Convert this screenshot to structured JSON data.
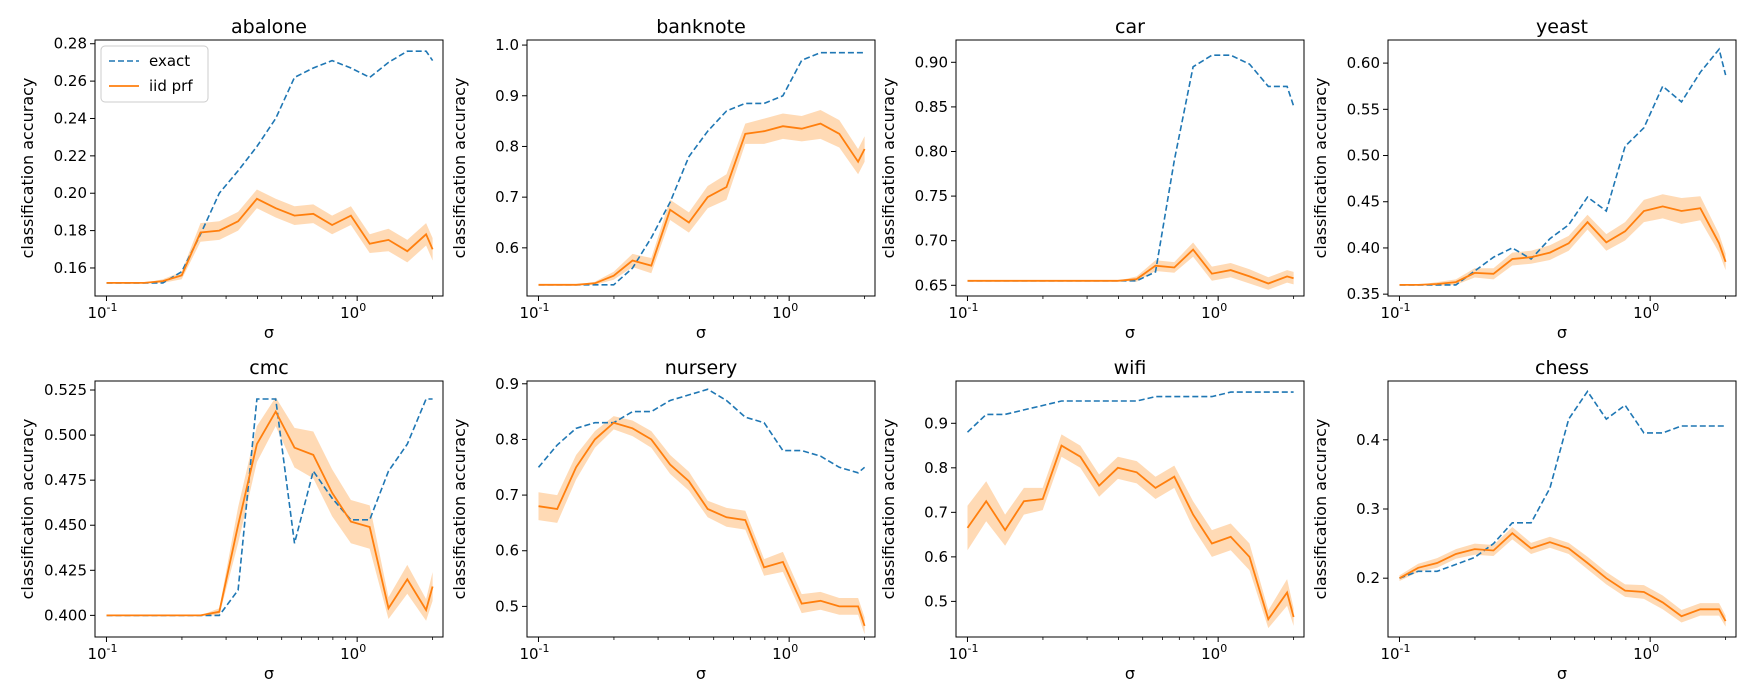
{
  "colors": {
    "exact": "#1f77b4",
    "iid_prf": "#ff7f0e",
    "band": "#ffbb78"
  },
  "legend": {
    "items": [
      "exact",
      "iid prf"
    ],
    "placement": "upper-left of first panel"
  },
  "chart_data": [
    {
      "type": "line",
      "title": "abalone",
      "xlabel": "σ",
      "ylabel": "classification accuracy",
      "xscale": "log",
      "xtick_labels": [
        "10^-1",
        "10^0"
      ],
      "ylim": [
        0.145,
        0.282
      ],
      "yticks": [
        0.16,
        0.18,
        0.2,
        0.22,
        0.24,
        0.26,
        0.28
      ],
      "ytick_labels": [
        "0.16",
        "0.18",
        "0.20",
        "0.22",
        "0.24",
        "0.26",
        "0.28"
      ],
      "x": [
        0.1,
        0.1188,
        0.1413,
        0.1679,
        0.1995,
        0.2371,
        0.2818,
        0.3349,
        0.3981,
        0.4732,
        0.5623,
        0.6683,
        0.7943,
        0.9441,
        1.122,
        1.3335,
        1.5849,
        1.8836,
        2.0
      ],
      "series": [
        {
          "name": "exact",
          "values": [
            0.152,
            0.152,
            0.152,
            0.152,
            0.158,
            0.178,
            0.2,
            0.212,
            0.225,
            0.24,
            0.262,
            0.267,
            0.271,
            0.267,
            0.262,
            0.27,
            0.276,
            0.276,
            0.271
          ]
        },
        {
          "name": "iid prf",
          "values": [
            0.152,
            0.152,
            0.152,
            0.153,
            0.156,
            0.179,
            0.18,
            0.185,
            0.197,
            0.192,
            0.188,
            0.189,
            0.183,
            0.188,
            0.173,
            0.175,
            0.169,
            0.178,
            0.17
          ],
          "lower": [
            0.152,
            0.152,
            0.152,
            0.152,
            0.154,
            0.174,
            0.175,
            0.18,
            0.192,
            0.187,
            0.183,
            0.184,
            0.178,
            0.183,
            0.168,
            0.169,
            0.163,
            0.172,
            0.164
          ],
          "upper": [
            0.152,
            0.152,
            0.152,
            0.154,
            0.158,
            0.184,
            0.185,
            0.19,
            0.202,
            0.197,
            0.193,
            0.194,
            0.188,
            0.193,
            0.178,
            0.181,
            0.175,
            0.184,
            0.176
          ]
        }
      ]
    },
    {
      "type": "line",
      "title": "banknote",
      "xlabel": "σ",
      "ylabel": "classification accuracy",
      "xscale": "log",
      "xtick_labels": [
        "10^-1",
        "10^0"
      ],
      "ylim": [
        0.505,
        1.01
      ],
      "yticks": [
        0.6,
        0.7,
        0.8,
        0.9,
        1.0
      ],
      "ytick_labels": [
        "0.6",
        "0.7",
        "0.8",
        "0.9",
        "1.0"
      ],
      "x": [
        0.1,
        0.1188,
        0.1413,
        0.1679,
        0.1995,
        0.2371,
        0.2818,
        0.3349,
        0.3981,
        0.4732,
        0.5623,
        0.6683,
        0.7943,
        0.9441,
        1.122,
        1.3335,
        1.5849,
        1.8836,
        2.0
      ],
      "series": [
        {
          "name": "exact",
          "values": [
            0.527,
            0.527,
            0.527,
            0.527,
            0.527,
            0.56,
            0.62,
            0.69,
            0.78,
            0.83,
            0.87,
            0.885,
            0.885,
            0.9,
            0.97,
            0.985,
            0.985,
            0.985,
            0.985
          ]
        },
        {
          "name": "iid prf",
          "values": [
            0.527,
            0.527,
            0.527,
            0.53,
            0.545,
            0.575,
            0.565,
            0.675,
            0.65,
            0.7,
            0.72,
            0.825,
            0.83,
            0.84,
            0.835,
            0.845,
            0.825,
            0.77,
            0.795
          ],
          "lower": [
            0.527,
            0.527,
            0.527,
            0.527,
            0.537,
            0.562,
            0.55,
            0.655,
            0.63,
            0.678,
            0.695,
            0.805,
            0.805,
            0.815,
            0.81,
            0.815,
            0.798,
            0.745,
            0.77
          ],
          "upper": [
            0.527,
            0.527,
            0.527,
            0.533,
            0.553,
            0.588,
            0.58,
            0.695,
            0.67,
            0.722,
            0.745,
            0.845,
            0.855,
            0.865,
            0.86,
            0.872,
            0.852,
            0.795,
            0.82
          ]
        }
      ]
    },
    {
      "type": "line",
      "title": "car",
      "xlabel": "σ",
      "ylabel": "classification accuracy",
      "xscale": "log",
      "xtick_labels": [
        "10^-1",
        "10^0"
      ],
      "ylim": [
        0.638,
        0.925
      ],
      "yticks": [
        0.65,
        0.7,
        0.75,
        0.8,
        0.85,
        0.9
      ],
      "ytick_labels": [
        "0.65",
        "0.70",
        "0.75",
        "0.80",
        "0.85",
        "0.90"
      ],
      "x": [
        0.1,
        0.1188,
        0.1413,
        0.1679,
        0.1995,
        0.2371,
        0.2818,
        0.3349,
        0.3981,
        0.4732,
        0.5623,
        0.6683,
        0.7943,
        0.9441,
        1.122,
        1.3335,
        1.5849,
        1.8836,
        2.0
      ],
      "series": [
        {
          "name": "exact",
          "values": [
            0.655,
            0.655,
            0.655,
            0.655,
            0.655,
            0.655,
            0.655,
            0.655,
            0.655,
            0.655,
            0.665,
            0.79,
            0.895,
            0.908,
            0.908,
            0.898,
            0.873,
            0.873,
            0.851
          ]
        },
        {
          "name": "iid prf",
          "values": [
            0.655,
            0.655,
            0.655,
            0.655,
            0.655,
            0.655,
            0.655,
            0.655,
            0.655,
            0.657,
            0.672,
            0.67,
            0.69,
            0.663,
            0.667,
            0.66,
            0.652,
            0.66,
            0.658
          ],
          "lower": [
            0.655,
            0.655,
            0.655,
            0.655,
            0.655,
            0.655,
            0.655,
            0.655,
            0.655,
            0.654,
            0.666,
            0.664,
            0.682,
            0.655,
            0.659,
            0.652,
            0.645,
            0.653,
            0.651
          ],
          "upper": [
            0.655,
            0.655,
            0.655,
            0.655,
            0.655,
            0.655,
            0.655,
            0.655,
            0.655,
            0.66,
            0.678,
            0.676,
            0.698,
            0.671,
            0.675,
            0.668,
            0.659,
            0.667,
            0.665
          ]
        }
      ]
    },
    {
      "type": "line",
      "title": "yeast",
      "xlabel": "σ",
      "ylabel": "classification accuracy",
      "xscale": "log",
      "xtick_labels": [
        "10^-1",
        "10^0"
      ],
      "ylim": [
        0.348,
        0.625
      ],
      "yticks": [
        0.35,
        0.4,
        0.45,
        0.5,
        0.55,
        0.6
      ],
      "ytick_labels": [
        "0.35",
        "0.40",
        "0.45",
        "0.50",
        "0.55",
        "0.60"
      ],
      "x": [
        0.1,
        0.1188,
        0.1413,
        0.1679,
        0.1995,
        0.2371,
        0.2818,
        0.3349,
        0.3981,
        0.4732,
        0.5623,
        0.6683,
        0.7943,
        0.9441,
        1.122,
        1.3335,
        1.5849,
        1.8836,
        2.0
      ],
      "series": [
        {
          "name": "exact",
          "values": [
            0.36,
            0.36,
            0.36,
            0.36,
            0.375,
            0.39,
            0.4,
            0.388,
            0.41,
            0.425,
            0.455,
            0.44,
            0.51,
            0.53,
            0.575,
            0.558,
            0.59,
            0.615,
            0.587
          ]
        },
        {
          "name": "iid prf",
          "values": [
            0.36,
            0.36,
            0.361,
            0.363,
            0.373,
            0.372,
            0.388,
            0.39,
            0.395,
            0.405,
            0.428,
            0.406,
            0.418,
            0.44,
            0.445,
            0.44,
            0.443,
            0.405,
            0.385
          ],
          "lower": [
            0.36,
            0.36,
            0.359,
            0.36,
            0.368,
            0.366,
            0.381,
            0.383,
            0.387,
            0.397,
            0.42,
            0.397,
            0.408,
            0.428,
            0.432,
            0.426,
            0.43,
            0.395,
            0.376
          ],
          "upper": [
            0.36,
            0.36,
            0.363,
            0.366,
            0.378,
            0.378,
            0.395,
            0.397,
            0.403,
            0.413,
            0.436,
            0.415,
            0.428,
            0.452,
            0.458,
            0.454,
            0.456,
            0.415,
            0.394
          ]
        }
      ]
    },
    {
      "type": "line",
      "title": "cmc",
      "xlabel": "σ",
      "ylabel": "classification accuracy",
      "xscale": "log",
      "xtick_labels": [
        "10^-1",
        "10^0"
      ],
      "ylim": [
        0.388,
        0.53
      ],
      "yticks": [
        0.4,
        0.425,
        0.45,
        0.475,
        0.5,
        0.525
      ],
      "ytick_labels": [
        "0.400",
        "0.425",
        "0.450",
        "0.475",
        "0.500",
        "0.525"
      ],
      "x": [
        0.1,
        0.1188,
        0.1413,
        0.1679,
        0.1995,
        0.2371,
        0.2818,
        0.3349,
        0.3981,
        0.4732,
        0.5623,
        0.6683,
        0.7943,
        0.9441,
        1.122,
        1.3335,
        1.5849,
        1.8836,
        2.0
      ],
      "series": [
        {
          "name": "exact",
          "values": [
            0.4,
            0.4,
            0.4,
            0.4,
            0.4,
            0.4,
            0.4,
            0.414,
            0.52,
            0.52,
            0.44,
            0.48,
            0.465,
            0.453,
            0.453,
            0.48,
            0.495,
            0.52,
            0.52
          ]
        },
        {
          "name": "iid prf",
          "values": [
            0.4,
            0.4,
            0.4,
            0.4,
            0.4,
            0.4,
            0.402,
            0.45,
            0.495,
            0.513,
            0.493,
            0.489,
            0.468,
            0.452,
            0.449,
            0.404,
            0.42,
            0.403,
            0.416
          ],
          "lower": [
            0.4,
            0.4,
            0.4,
            0.4,
            0.4,
            0.4,
            0.4,
            0.44,
            0.485,
            0.505,
            0.482,
            0.476,
            0.455,
            0.44,
            0.437,
            0.398,
            0.412,
            0.397,
            0.408
          ],
          "upper": [
            0.4,
            0.4,
            0.4,
            0.4,
            0.4,
            0.4,
            0.404,
            0.46,
            0.505,
            0.521,
            0.504,
            0.502,
            0.481,
            0.464,
            0.461,
            0.41,
            0.428,
            0.409,
            0.424
          ]
        }
      ]
    },
    {
      "type": "line",
      "title": "nursery",
      "xlabel": "σ",
      "ylabel": "classification accuracy",
      "xscale": "log",
      "xtick_labels": [
        "10^-1",
        "10^0"
      ],
      "ylim": [
        0.445,
        0.905
      ],
      "yticks": [
        0.5,
        0.6,
        0.7,
        0.8,
        0.9
      ],
      "ytick_labels": [
        "0.5",
        "0.6",
        "0.7",
        "0.8",
        "0.9"
      ],
      "x": [
        0.1,
        0.1188,
        0.1413,
        0.1679,
        0.1995,
        0.2371,
        0.2818,
        0.3349,
        0.3981,
        0.4732,
        0.5623,
        0.6683,
        0.7943,
        0.9441,
        1.122,
        1.3335,
        1.5849,
        1.8836,
        2.0
      ],
      "series": [
        {
          "name": "exact",
          "values": [
            0.75,
            0.79,
            0.82,
            0.83,
            0.83,
            0.85,
            0.85,
            0.87,
            0.88,
            0.89,
            0.87,
            0.84,
            0.83,
            0.78,
            0.78,
            0.77,
            0.75,
            0.74,
            0.75
          ]
        },
        {
          "name": "iid prf",
          "values": [
            0.68,
            0.675,
            0.75,
            0.8,
            0.83,
            0.82,
            0.8,
            0.755,
            0.725,
            0.675,
            0.66,
            0.655,
            0.57,
            0.58,
            0.505,
            0.51,
            0.5,
            0.5,
            0.465
          ],
          "lower": [
            0.655,
            0.65,
            0.728,
            0.785,
            0.818,
            0.806,
            0.785,
            0.738,
            0.708,
            0.66,
            0.643,
            0.638,
            0.555,
            0.562,
            0.488,
            0.494,
            0.485,
            0.485,
            0.45
          ],
          "upper": [
            0.705,
            0.7,
            0.772,
            0.815,
            0.842,
            0.834,
            0.815,
            0.772,
            0.742,
            0.69,
            0.677,
            0.672,
            0.585,
            0.598,
            0.522,
            0.526,
            0.515,
            0.515,
            0.48
          ]
        }
      ]
    },
    {
      "type": "line",
      "title": "wifi",
      "xlabel": "σ",
      "ylabel": "classification accuracy",
      "xscale": "log",
      "xtick_labels": [
        "10^-1",
        "10^0"
      ],
      "ylim": [
        0.42,
        0.995
      ],
      "yticks": [
        0.5,
        0.6,
        0.7,
        0.8,
        0.9
      ],
      "ytick_labels": [
        "0.5",
        "0.6",
        "0.7",
        "0.8",
        "0.9"
      ],
      "x": [
        0.1,
        0.1188,
        0.1413,
        0.1679,
        0.1995,
        0.2371,
        0.2818,
        0.3349,
        0.3981,
        0.4732,
        0.5623,
        0.6683,
        0.7943,
        0.9441,
        1.122,
        1.3335,
        1.5849,
        1.8836,
        2.0
      ],
      "series": [
        {
          "name": "exact",
          "values": [
            0.88,
            0.92,
            0.92,
            0.93,
            0.94,
            0.95,
            0.95,
            0.95,
            0.95,
            0.95,
            0.96,
            0.96,
            0.96,
            0.96,
            0.97,
            0.97,
            0.97,
            0.97,
            0.97
          ]
        },
        {
          "name": "iid prf",
          "values": [
            0.665,
            0.725,
            0.66,
            0.725,
            0.73,
            0.85,
            0.825,
            0.76,
            0.8,
            0.79,
            0.755,
            0.78,
            0.695,
            0.63,
            0.645,
            0.6,
            0.46,
            0.52,
            0.465
          ],
          "lower": [
            0.615,
            0.68,
            0.625,
            0.695,
            0.705,
            0.825,
            0.8,
            0.735,
            0.775,
            0.765,
            0.73,
            0.755,
            0.665,
            0.6,
            0.615,
            0.57,
            0.44,
            0.49,
            0.445
          ],
          "upper": [
            0.715,
            0.77,
            0.695,
            0.755,
            0.755,
            0.875,
            0.85,
            0.785,
            0.825,
            0.815,
            0.78,
            0.805,
            0.725,
            0.66,
            0.675,
            0.63,
            0.48,
            0.55,
            0.485
          ]
        }
      ]
    },
    {
      "type": "line",
      "title": "chess",
      "xlabel": "σ",
      "ylabel": "classification accuracy",
      "xscale": "log",
      "xtick_labels": [
        "10^-1",
        "10^0"
      ],
      "ylim": [
        0.115,
        0.485
      ],
      "yticks": [
        0.2,
        0.3,
        0.4
      ],
      "ytick_labels": [
        "0.2",
        "0.3",
        "0.4"
      ],
      "x": [
        0.1,
        0.1188,
        0.1413,
        0.1679,
        0.1995,
        0.2371,
        0.2818,
        0.3349,
        0.3981,
        0.4732,
        0.5623,
        0.6683,
        0.7943,
        0.9441,
        1.122,
        1.3335,
        1.5849,
        1.8836,
        2.0
      ],
      "series": [
        {
          "name": "exact",
          "values": [
            0.2,
            0.21,
            0.21,
            0.22,
            0.23,
            0.25,
            0.28,
            0.28,
            0.33,
            0.43,
            0.47,
            0.43,
            0.45,
            0.41,
            0.41,
            0.42,
            0.42,
            0.42,
            0.42
          ]
        },
        {
          "name": "iid prf",
          "values": [
            0.2,
            0.215,
            0.222,
            0.235,
            0.242,
            0.24,
            0.265,
            0.243,
            0.252,
            0.243,
            0.222,
            0.2,
            0.182,
            0.18,
            0.165,
            0.145,
            0.155,
            0.155,
            0.138
          ],
          "lower": [
            0.196,
            0.209,
            0.215,
            0.228,
            0.234,
            0.232,
            0.256,
            0.235,
            0.244,
            0.235,
            0.213,
            0.191,
            0.173,
            0.17,
            0.155,
            0.136,
            0.146,
            0.146,
            0.13
          ],
          "upper": [
            0.204,
            0.221,
            0.229,
            0.242,
            0.25,
            0.248,
            0.274,
            0.251,
            0.26,
            0.251,
            0.231,
            0.209,
            0.191,
            0.19,
            0.175,
            0.154,
            0.164,
            0.164,
            0.146
          ]
        }
      ]
    }
  ]
}
